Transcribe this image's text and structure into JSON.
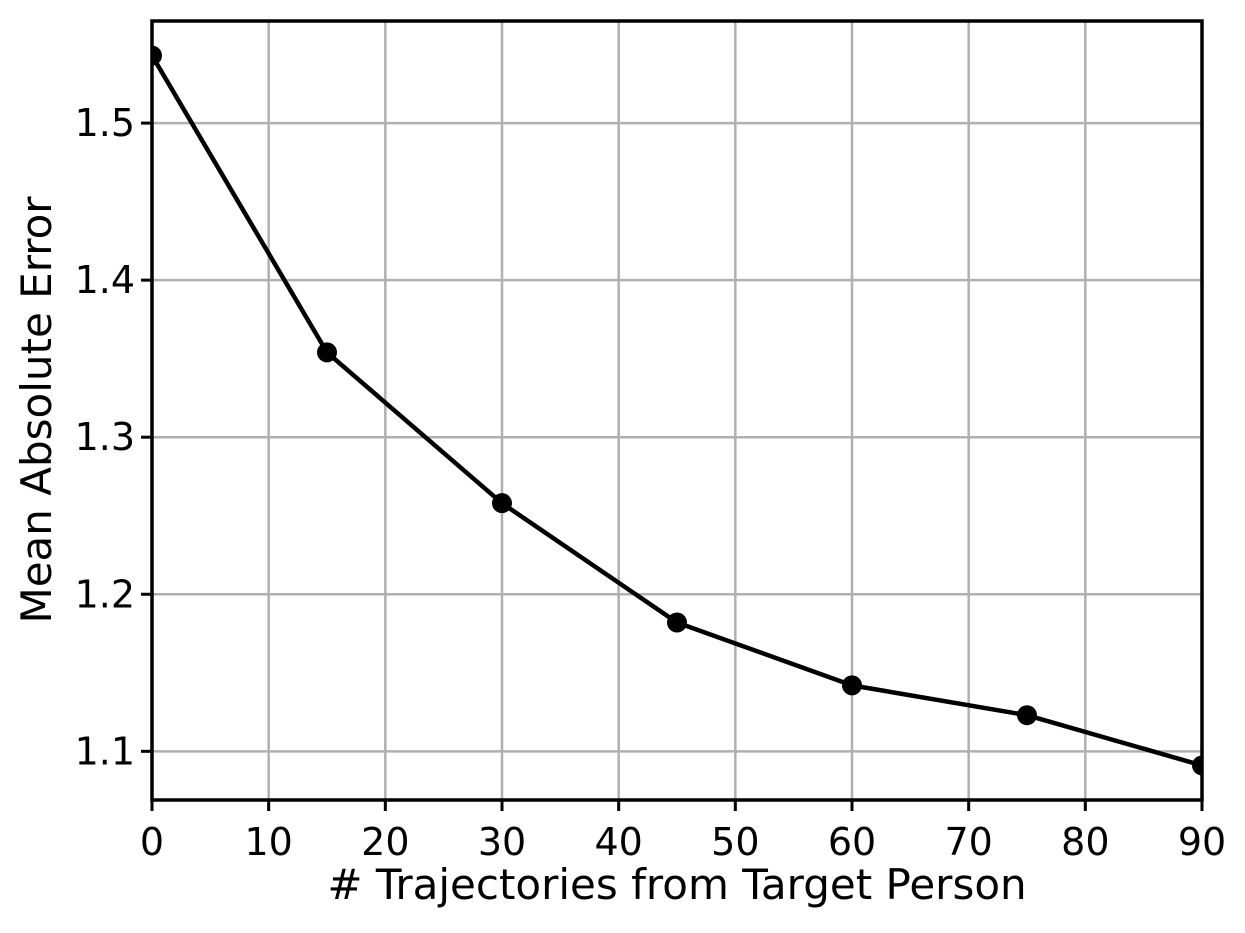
{
  "chart_data": {
    "type": "line",
    "title": "",
    "xlabel": "# Trajectories from Target Person",
    "ylabel": "Mean Absolute Error",
    "x": [
      0,
      15,
      30,
      45,
      60,
      75,
      90
    ],
    "y": [
      1.543,
      1.354,
      1.258,
      1.182,
      1.142,
      1.123,
      1.091
    ],
    "series": [
      {
        "name": "Mean Absolute Error",
        "values": [
          1.543,
          1.354,
          1.258,
          1.182,
          1.142,
          1.123,
          1.091
        ]
      }
    ],
    "xlim": [
      0,
      90
    ],
    "ylim": [
      1.069,
      1.565
    ],
    "x_ticks": [
      {
        "value": 0,
        "label": "0"
      },
      {
        "value": 10,
        "label": "10"
      },
      {
        "value": 20,
        "label": "20"
      },
      {
        "value": 30,
        "label": "30"
      },
      {
        "value": 40,
        "label": "40"
      },
      {
        "value": 50,
        "label": "50"
      },
      {
        "value": 60,
        "label": "60"
      },
      {
        "value": 70,
        "label": "70"
      },
      {
        "value": 80,
        "label": "80"
      },
      {
        "value": 90,
        "label": "90"
      }
    ],
    "y_ticks": [
      {
        "value": 1.1,
        "label": "1.1"
      },
      {
        "value": 1.2,
        "label": "1.2"
      },
      {
        "value": 1.3,
        "label": "1.3"
      },
      {
        "value": 1.4,
        "label": "1.4"
      },
      {
        "value": 1.5,
        "label": "1.5"
      }
    ],
    "grid": true,
    "legend_position": "none",
    "marker_style": "filled-circle",
    "colors": {
      "line": "#000000",
      "marker": "#000000",
      "grid": "#b0b0b0",
      "axis": "#000000",
      "text": "#000000",
      "background": "#ffffff"
    }
  }
}
